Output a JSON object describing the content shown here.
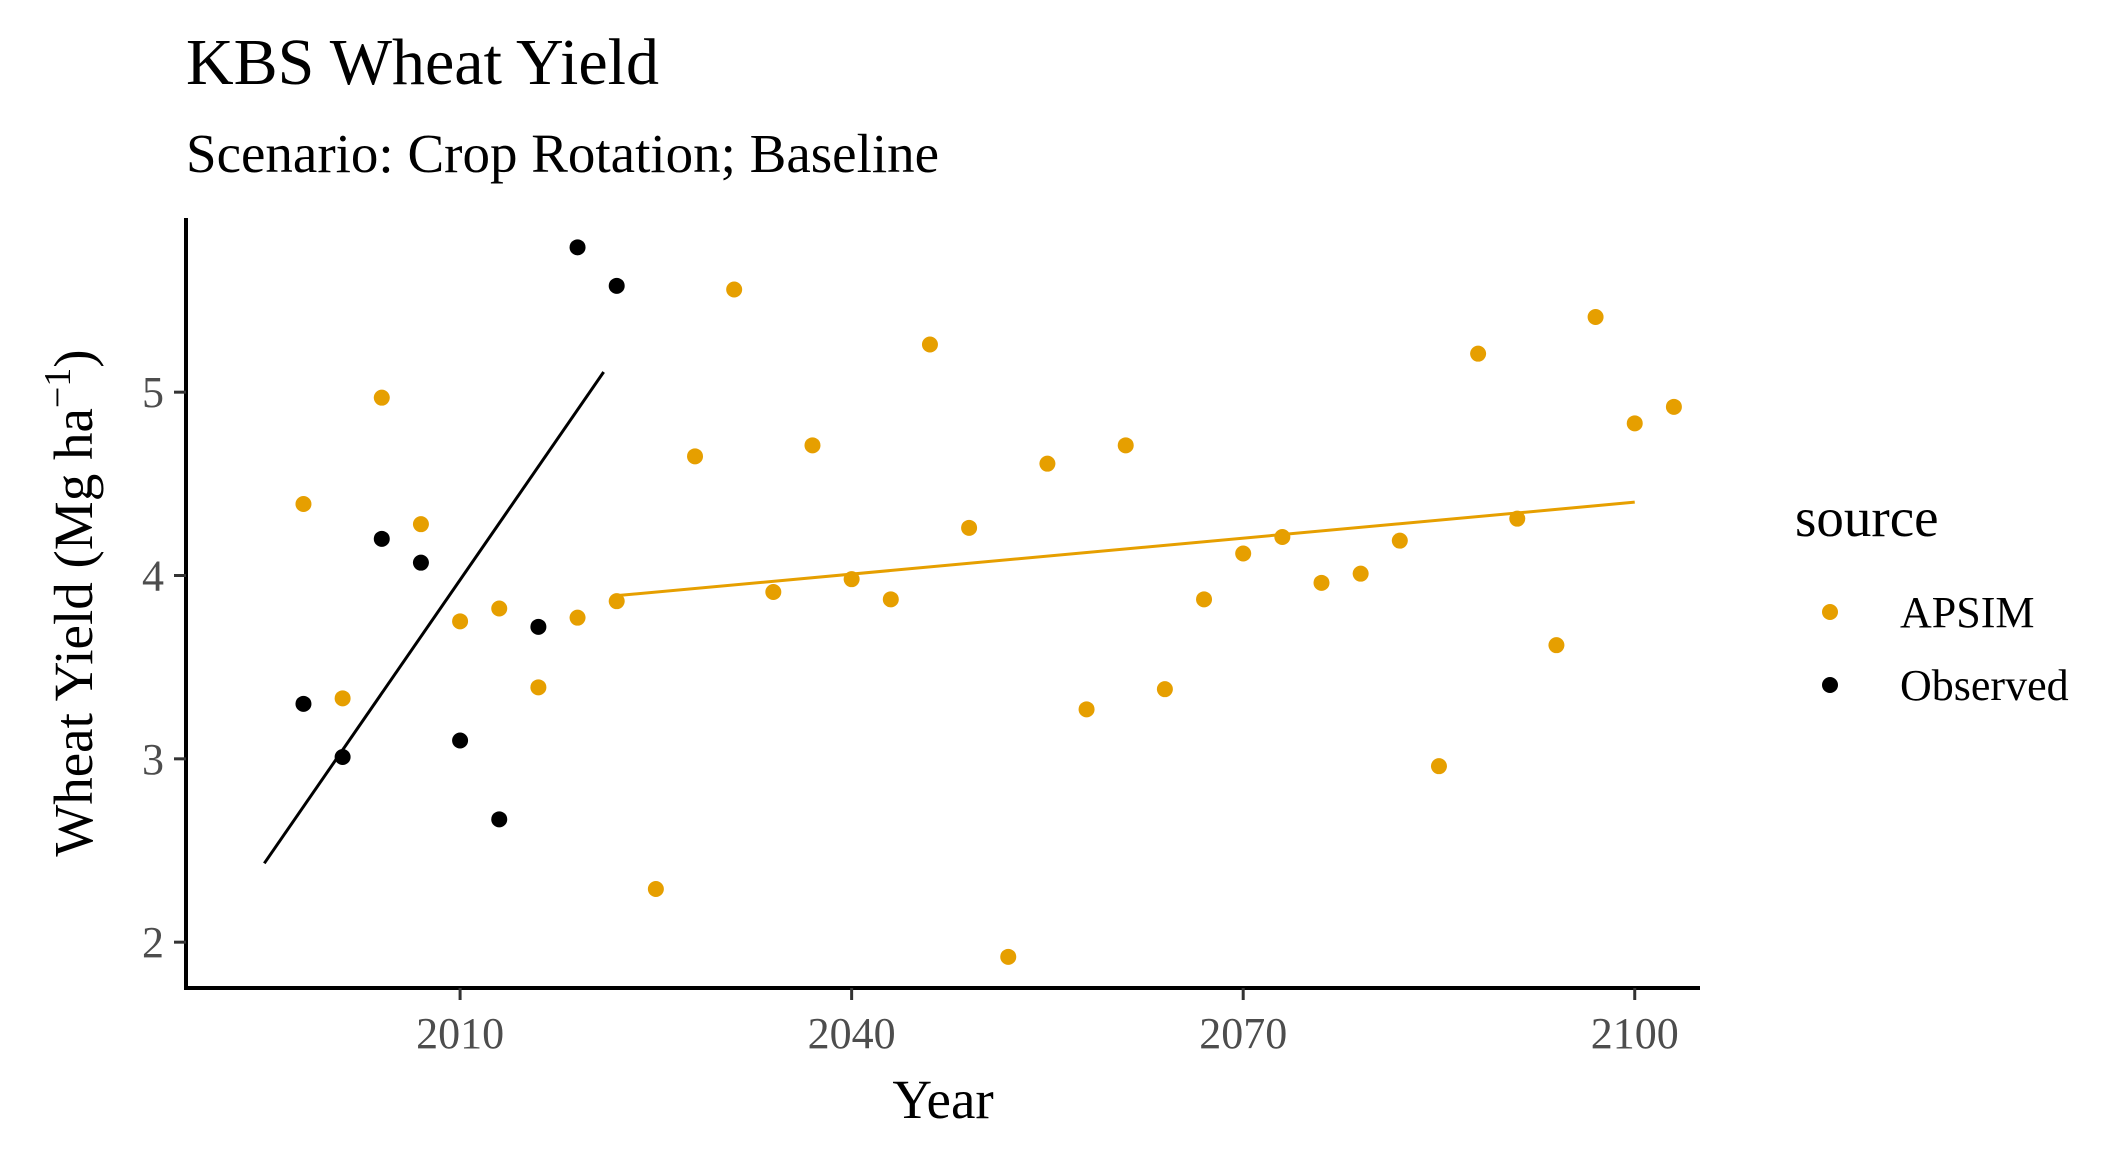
{
  "chart_data": {
    "type": "scatter",
    "title": "KBS Wheat Yield",
    "subtitle": "Scenario: Crop Rotation; Baseline",
    "xlabel": "Year",
    "ylabel": "Wheat Yield (Mg ha",
    "ylabel_sup": "−1",
    "ylabel_close": ")",
    "xlim": [
      1989,
      2105
    ],
    "ylim": [
      1.75,
      5.95
    ],
    "xticks": [
      2010,
      2040,
      2070,
      2100
    ],
    "yticks": [
      2,
      3,
      4,
      5
    ],
    "grid": false,
    "legend": {
      "title": "source",
      "position": "right"
    },
    "series": [
      {
        "name": "APSIM",
        "color": "#E69F00",
        "points": [
          [
            1998,
            4.39
          ],
          [
            2001,
            3.33
          ],
          [
            2004,
            4.97
          ],
          [
            2007,
            4.28
          ],
          [
            2010,
            3.75
          ],
          [
            2013,
            3.82
          ],
          [
            2016,
            3.39
          ],
          [
            2019,
            3.77
          ],
          [
            2022,
            3.86
          ],
          [
            2025,
            2.29
          ],
          [
            2028,
            4.65
          ],
          [
            2031,
            5.56
          ],
          [
            2034,
            3.91
          ],
          [
            2037,
            4.71
          ],
          [
            2040,
            3.98
          ],
          [
            2043,
            3.87
          ],
          [
            2046,
            5.26
          ],
          [
            2049,
            4.26
          ],
          [
            2052,
            1.92
          ],
          [
            2055,
            4.61
          ],
          [
            2058,
            3.27
          ],
          [
            2061,
            4.71
          ],
          [
            2064,
            3.38
          ],
          [
            2067,
            3.87
          ],
          [
            2070,
            4.12
          ],
          [
            2073,
            4.21
          ],
          [
            2076,
            3.96
          ],
          [
            2079,
            4.01
          ],
          [
            2082,
            4.19
          ],
          [
            2085,
            2.96
          ],
          [
            2088,
            5.21
          ],
          [
            2091,
            4.31
          ],
          [
            2094,
            3.62
          ],
          [
            2097,
            5.41
          ],
          [
            2100,
            4.83
          ],
          [
            2103,
            4.92
          ]
        ],
        "trend": [
          [
            2022,
            3.89
          ],
          [
            2100,
            4.4
          ]
        ]
      },
      {
        "name": "Observed",
        "color": "#000000",
        "points": [
          [
            1998,
            3.3
          ],
          [
            2001,
            3.01
          ],
          [
            2004,
            4.2
          ],
          [
            2007,
            4.07
          ],
          [
            2010,
            3.1
          ],
          [
            2013,
            2.67
          ],
          [
            2016,
            3.72
          ],
          [
            2019,
            5.79
          ],
          [
            2022,
            5.58
          ]
        ],
        "trend": [
          [
            1995,
            2.43
          ],
          [
            2021,
            5.11
          ]
        ]
      }
    ]
  }
}
